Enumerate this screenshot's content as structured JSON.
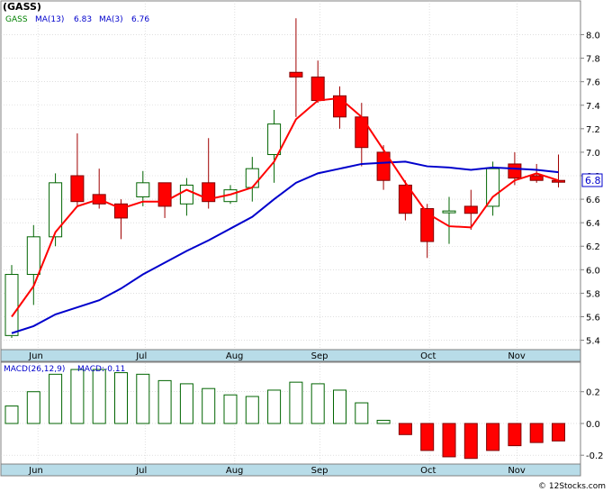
{
  "title": "(GASS)",
  "footer": "© 12Stocks.com",
  "colors": {
    "up": "#ffffff",
    "down": "#ff0000",
    "candleEdge": "#006400",
    "ma13": "#0000cc",
    "ma3": "#ff0000",
    "axisBand": "#b8dce8",
    "grid": "#cccccc",
    "label": "#0000cc",
    "last": "#0000cc"
  },
  "chart_data": [
    {
      "type": "candlestick",
      "legend": {
        "symbol": "GASS",
        "ma13_label": "MA(13)",
        "ma13_value": "6.83",
        "ma3_label": "MA(3)",
        "ma3_value": "6.76"
      },
      "ylim": [
        5.32,
        8.28
      ],
      "y_ticks": [
        "5.4",
        "5.6",
        "5.8",
        "6.0",
        "6.2",
        "6.4",
        "6.6",
        "6.8",
        "7.0",
        "7.2",
        "7.4",
        "7.6",
        "7.8",
        "8.0"
      ],
      "x_labels": [
        "Jun",
        "Jul",
        "Aug",
        "Sep",
        "Oct",
        "Nov"
      ],
      "x_label_index": [
        1.2,
        6.1,
        10.2,
        14.1,
        19.1,
        23.1
      ],
      "last_price": "6.8",
      "grid": true,
      "candles": [
        {
          "o": 5.44,
          "h": 6.04,
          "l": 5.42,
          "c": 5.96
        },
        {
          "o": 5.96,
          "h": 6.38,
          "l": 5.7,
          "c": 6.28
        },
        {
          "o": 6.28,
          "h": 6.82,
          "l": 6.2,
          "c": 6.74
        },
        {
          "o": 6.8,
          "h": 7.16,
          "l": 6.54,
          "c": 6.58
        },
        {
          "o": 6.64,
          "h": 6.86,
          "l": 6.52,
          "c": 6.56
        },
        {
          "o": 6.56,
          "h": 6.6,
          "l": 6.26,
          "c": 6.44
        },
        {
          "o": 6.62,
          "h": 6.84,
          "l": 6.54,
          "c": 6.74
        },
        {
          "o": 6.74,
          "h": 6.74,
          "l": 6.44,
          "c": 6.54
        },
        {
          "o": 6.56,
          "h": 6.78,
          "l": 6.46,
          "c": 6.72
        },
        {
          "o": 6.74,
          "h": 7.12,
          "l": 6.52,
          "c": 6.58
        },
        {
          "o": 6.58,
          "h": 6.72,
          "l": 6.56,
          "c": 6.68
        },
        {
          "o": 6.7,
          "h": 6.96,
          "l": 6.58,
          "c": 6.86
        },
        {
          "o": 6.98,
          "h": 7.36,
          "l": 6.74,
          "c": 7.24
        },
        {
          "o": 7.68,
          "h": 8.14,
          "l": 7.3,
          "c": 7.64
        },
        {
          "o": 7.64,
          "h": 7.78,
          "l": 7.42,
          "c": 7.44
        },
        {
          "o": 7.48,
          "h": 7.56,
          "l": 7.2,
          "c": 7.3
        },
        {
          "o": 7.3,
          "h": 7.42,
          "l": 6.88,
          "c": 7.04
        },
        {
          "o": 7.0,
          "h": 7.06,
          "l": 6.68,
          "c": 6.76
        },
        {
          "o": 6.72,
          "h": 6.76,
          "l": 6.42,
          "c": 6.48
        },
        {
          "o": 6.52,
          "h": 6.56,
          "l": 6.1,
          "c": 6.24
        },
        {
          "o": 6.5,
          "h": 6.62,
          "l": 6.22,
          "c": 6.5
        },
        {
          "o": 6.54,
          "h": 6.68,
          "l": 6.34,
          "c": 6.48
        },
        {
          "o": 6.54,
          "h": 6.92,
          "l": 6.46,
          "c": 6.86
        },
        {
          "o": 6.9,
          "h": 7.0,
          "l": 6.72,
          "c": 6.78
        },
        {
          "o": 6.8,
          "h": 6.9,
          "l": 6.74,
          "c": 6.76
        },
        {
          "o": 6.76,
          "h": 6.98,
          "l": 6.7,
          "c": 6.75
        }
      ],
      "series": [
        {
          "name": "MA(13)",
          "values": [
            5.46,
            5.52,
            5.62,
            5.68,
            5.74,
            5.84,
            5.96,
            6.06,
            6.16,
            6.25,
            6.35,
            6.45,
            6.6,
            6.74,
            6.82,
            6.86,
            6.9,
            6.91,
            6.92,
            6.88,
            6.87,
            6.85,
            6.87,
            6.86,
            6.85,
            6.83
          ]
        },
        {
          "name": "MA(3)",
          "values": [
            5.6,
            5.86,
            6.32,
            6.54,
            6.6,
            6.52,
            6.58,
            6.58,
            6.68,
            6.6,
            6.64,
            6.7,
            6.92,
            7.28,
            7.44,
            7.46,
            7.3,
            7.02,
            6.74,
            6.48,
            6.37,
            6.36,
            6.62,
            6.76,
            6.82,
            6.76
          ]
        }
      ]
    },
    {
      "type": "bar",
      "legend": {
        "label": "MACD(26,12,9)",
        "value_label": "MACD:-0.11"
      },
      "ylim": [
        -0.25,
        0.38
      ],
      "y_ticks": [
        "0.2",
        "0.0",
        "-0.2"
      ],
      "x_labels": [
        "Jun",
        "Jul",
        "Aug",
        "Sep",
        "Oct",
        "Nov"
      ],
      "values": [
        0.11,
        0.2,
        0.31,
        0.34,
        0.34,
        0.32,
        0.31,
        0.27,
        0.25,
        0.22,
        0.18,
        0.17,
        0.21,
        0.26,
        0.25,
        0.21,
        0.13,
        0.02,
        -0.07,
        -0.17,
        -0.21,
        -0.22,
        -0.17,
        -0.14,
        -0.12,
        -0.11
      ]
    }
  ]
}
